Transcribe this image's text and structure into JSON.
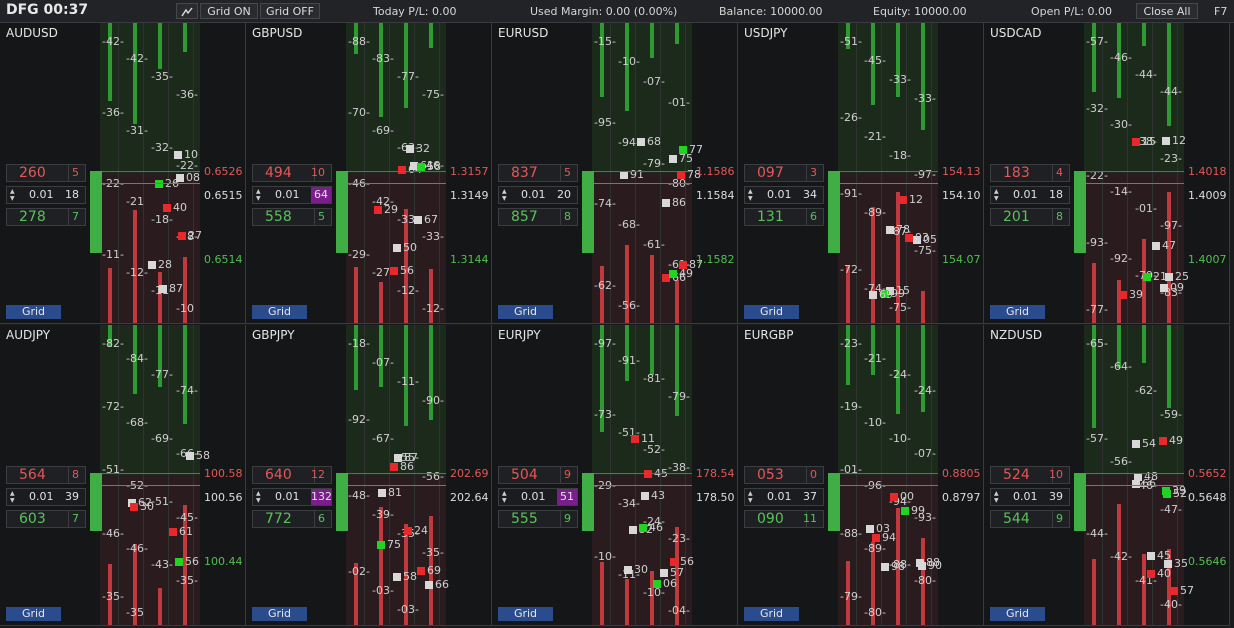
{
  "toolbar": {
    "title": "DFG 00:37",
    "grid_on": "Grid ON",
    "grid_off": "Grid OFF",
    "today_pl": "Today P/L: 0.00",
    "used_margin": "Used Margin: 0.00 (0.00%)",
    "balance": "Balance: 10000.00",
    "equity": "Equity: 10000.00",
    "open_pl": "Open P/L: 0.00",
    "close_all": "Close All",
    "f7": "F7"
  },
  "grid_label": "Grid",
  "panels": [
    {
      "symbol": "AUDUSD",
      "sell": "260",
      "sell_n": "5",
      "lot": "0.01",
      "lot_count": "18",
      "lot_hl": false,
      "buy": "278",
      "buy_n": "7",
      "p1": "0.6526",
      "p2": "0.6515",
      "p3": "0.6514",
      "levels": [
        "-42-",
        "-42-",
        "-35-",
        "-36-",
        "-36-",
        "-31-",
        "-32-",
        "-22-",
        "-22-",
        "-21",
        "-18-",
        "-18-",
        "-11-",
        "-12-",
        "-11-",
        "-10"
      ],
      "vols": [
        "28",
        "27",
        "87",
        "26",
        "40",
        "08",
        "10"
      ]
    },
    {
      "symbol": "GBPUSD",
      "sell": "494",
      "sell_n": "10",
      "lot": "0.01",
      "lot_count": "64",
      "lot_hl": true,
      "buy": "558",
      "buy_n": "5",
      "p1": "1.3157",
      "p2": "1.3149",
      "p3": "1.3144",
      "levels": [
        "-88-",
        "-83-",
        "-77-",
        "-75-",
        "-70-",
        "-69-",
        "-63-",
        "-46-",
        "-46-",
        "-42-",
        "-33-",
        "-33-",
        "-29-",
        "-27-",
        "-12-",
        "-12-"
      ],
      "vols": [
        "67",
        "64",
        "61",
        "58",
        "56",
        "50",
        "32",
        "29"
      ]
    },
    {
      "symbol": "EURUSD",
      "sell": "837",
      "sell_n": "5",
      "lot": "0.01",
      "lot_count": "20",
      "lot_hl": false,
      "buy": "857",
      "buy_n": "8",
      "p1": "1.1586",
      "p2": "1.1584",
      "p3": "1.1582",
      "levels": [
        "-15-",
        "-10-",
        "-07-",
        "-01-",
        "-95-",
        "-94-",
        "-79-",
        "-80-",
        "-74-",
        "-68-",
        "-61-",
        "-61-",
        "-62-",
        "-56-"
      ],
      "vols": [
        "91",
        "87",
        "86",
        "77",
        "78",
        "75",
        "68",
        "66",
        "49"
      ]
    },
    {
      "symbol": "USDJPY",
      "sell": "097",
      "sell_n": "3",
      "lot": "0.01",
      "lot_count": "34",
      "lot_hl": false,
      "buy": "131",
      "buy_n": "6",
      "p1": "154.13",
      "p2": "154.10",
      "p3": "154.07",
      "levels": [
        "-51-",
        "-45-",
        "-33-",
        "-33-",
        "-26-",
        "-21-",
        "-18-",
        "-97-",
        "-91-",
        "-89-",
        "-87-",
        "-75-",
        "-72-",
        "-74-",
        "-75-"
      ],
      "vols": [
        "15",
        "12",
        "05",
        "99",
        "93",
        "78",
        "69"
      ]
    },
    {
      "symbol": "USDCAD",
      "sell": "183",
      "sell_n": "4",
      "lot": "0.01",
      "lot_count": "18",
      "lot_hl": false,
      "buy": "201",
      "buy_n": "8",
      "p1": "1.4018",
      "p2": "1.4009",
      "p3": "1.4007",
      "levels": [
        "-57-",
        "-46-",
        "-44-",
        "-44-",
        "-32-",
        "-30-",
        "-38-",
        "-23-",
        "-22-",
        "-14-",
        "-01-",
        "-97-",
        "-93-",
        "-92-",
        "-79-",
        "-83-",
        "-77-"
      ],
      "vols": [
        "47",
        "39",
        "25",
        "21",
        "15",
        "12",
        "09"
      ]
    },
    {
      "symbol": "AUDJPY",
      "sell": "564",
      "sell_n": "8",
      "lot": "0.01",
      "lot_count": "39",
      "lot_hl": false,
      "buy": "603",
      "buy_n": "7",
      "p1": "100.58",
      "p2": "100.56",
      "p3": "100.44",
      "levels": [
        "-82-",
        "-84-",
        "-77-",
        "-74-",
        "-72-",
        "-68-",
        "-69-",
        "-66-",
        "-51-",
        "-52-",
        "-51-",
        "-45-",
        "-46-",
        "-46-",
        "-43-",
        "-35-",
        "-35-",
        "-35"
      ],
      "vols": [
        "62",
        "61",
        "58",
        "56",
        "30"
      ]
    },
    {
      "symbol": "GBPJPY",
      "sell": "640",
      "sell_n": "12",
      "lot": "0.01",
      "lot_count": "132",
      "lot_hl": true,
      "buy": "772",
      "buy_n": "6",
      "p1": "202.69",
      "p2": "202.64",
      "p3": "",
      "levels": [
        "-18-",
        "-07-",
        "-11-",
        "-90-",
        "-92-",
        "-67-",
        "-55-",
        "-56-",
        "-48-",
        "-39-",
        "-35-",
        "-35-",
        "-02-",
        "-03-",
        "-03-"
      ],
      "vols": [
        "87",
        "86",
        "81",
        "75",
        "69",
        "66",
        "58",
        "24"
      ]
    },
    {
      "symbol": "EURJPY",
      "sell": "504",
      "sell_n": "9",
      "lot": "0.01",
      "lot_count": "51",
      "lot_hl": true,
      "buy": "555",
      "buy_n": "9",
      "p1": "178.54",
      "p2": "178.50",
      "p3": "",
      "levels": [
        "-97-",
        "-91-",
        "-81-",
        "-79-",
        "-73-",
        "-51-",
        "-52-",
        "-38-",
        "-29-",
        "-34-",
        "-24-",
        "-23-",
        "-10-",
        "-11-",
        "-10-",
        "-04-"
      ],
      "vols": [
        "57",
        "56",
        "52",
        "46",
        "45",
        "43",
        "30",
        "11",
        "06"
      ]
    },
    {
      "symbol": "EURGBP",
      "sell": "053",
      "sell_n": "0",
      "lot": "0.01",
      "lot_count": "37",
      "lot_hl": false,
      "buy": "090",
      "buy_n": "11",
      "p1": "0.8805",
      "p2": "0.8797",
      "p3": "",
      "levels": [
        "-23-",
        "-21-",
        "-24-",
        "-24-",
        "-19-",
        "-10-",
        "-10-",
        "-07-",
        "-01-",
        "-96-",
        "-94-",
        "-93-",
        "-88-",
        "-89-",
        "-88-",
        "-80-",
        "-79-",
        "-80-"
      ],
      "vols": [
        "03",
        "00",
        "98",
        "99",
        "94",
        "90",
        "88"
      ]
    },
    {
      "symbol": "NZDUSD",
      "sell": "524",
      "sell_n": "10",
      "lot": "0.01",
      "lot_count": "39",
      "lot_hl": false,
      "buy": "544",
      "buy_n": "9",
      "p1": "0.5652",
      "p2": "0.5648",
      "p3": "0.5646",
      "levels": [
        "-65-",
        "-64-",
        "-62-",
        "-59-",
        "-57-",
        "-56-",
        "-46-",
        "-47-",
        "-44-",
        "-42-",
        "-41-",
        "-40-"
      ],
      "vols": [
        "66",
        "57",
        "54",
        "52",
        "49",
        "48",
        "45",
        "40",
        "39",
        "35"
      ]
    }
  ]
}
